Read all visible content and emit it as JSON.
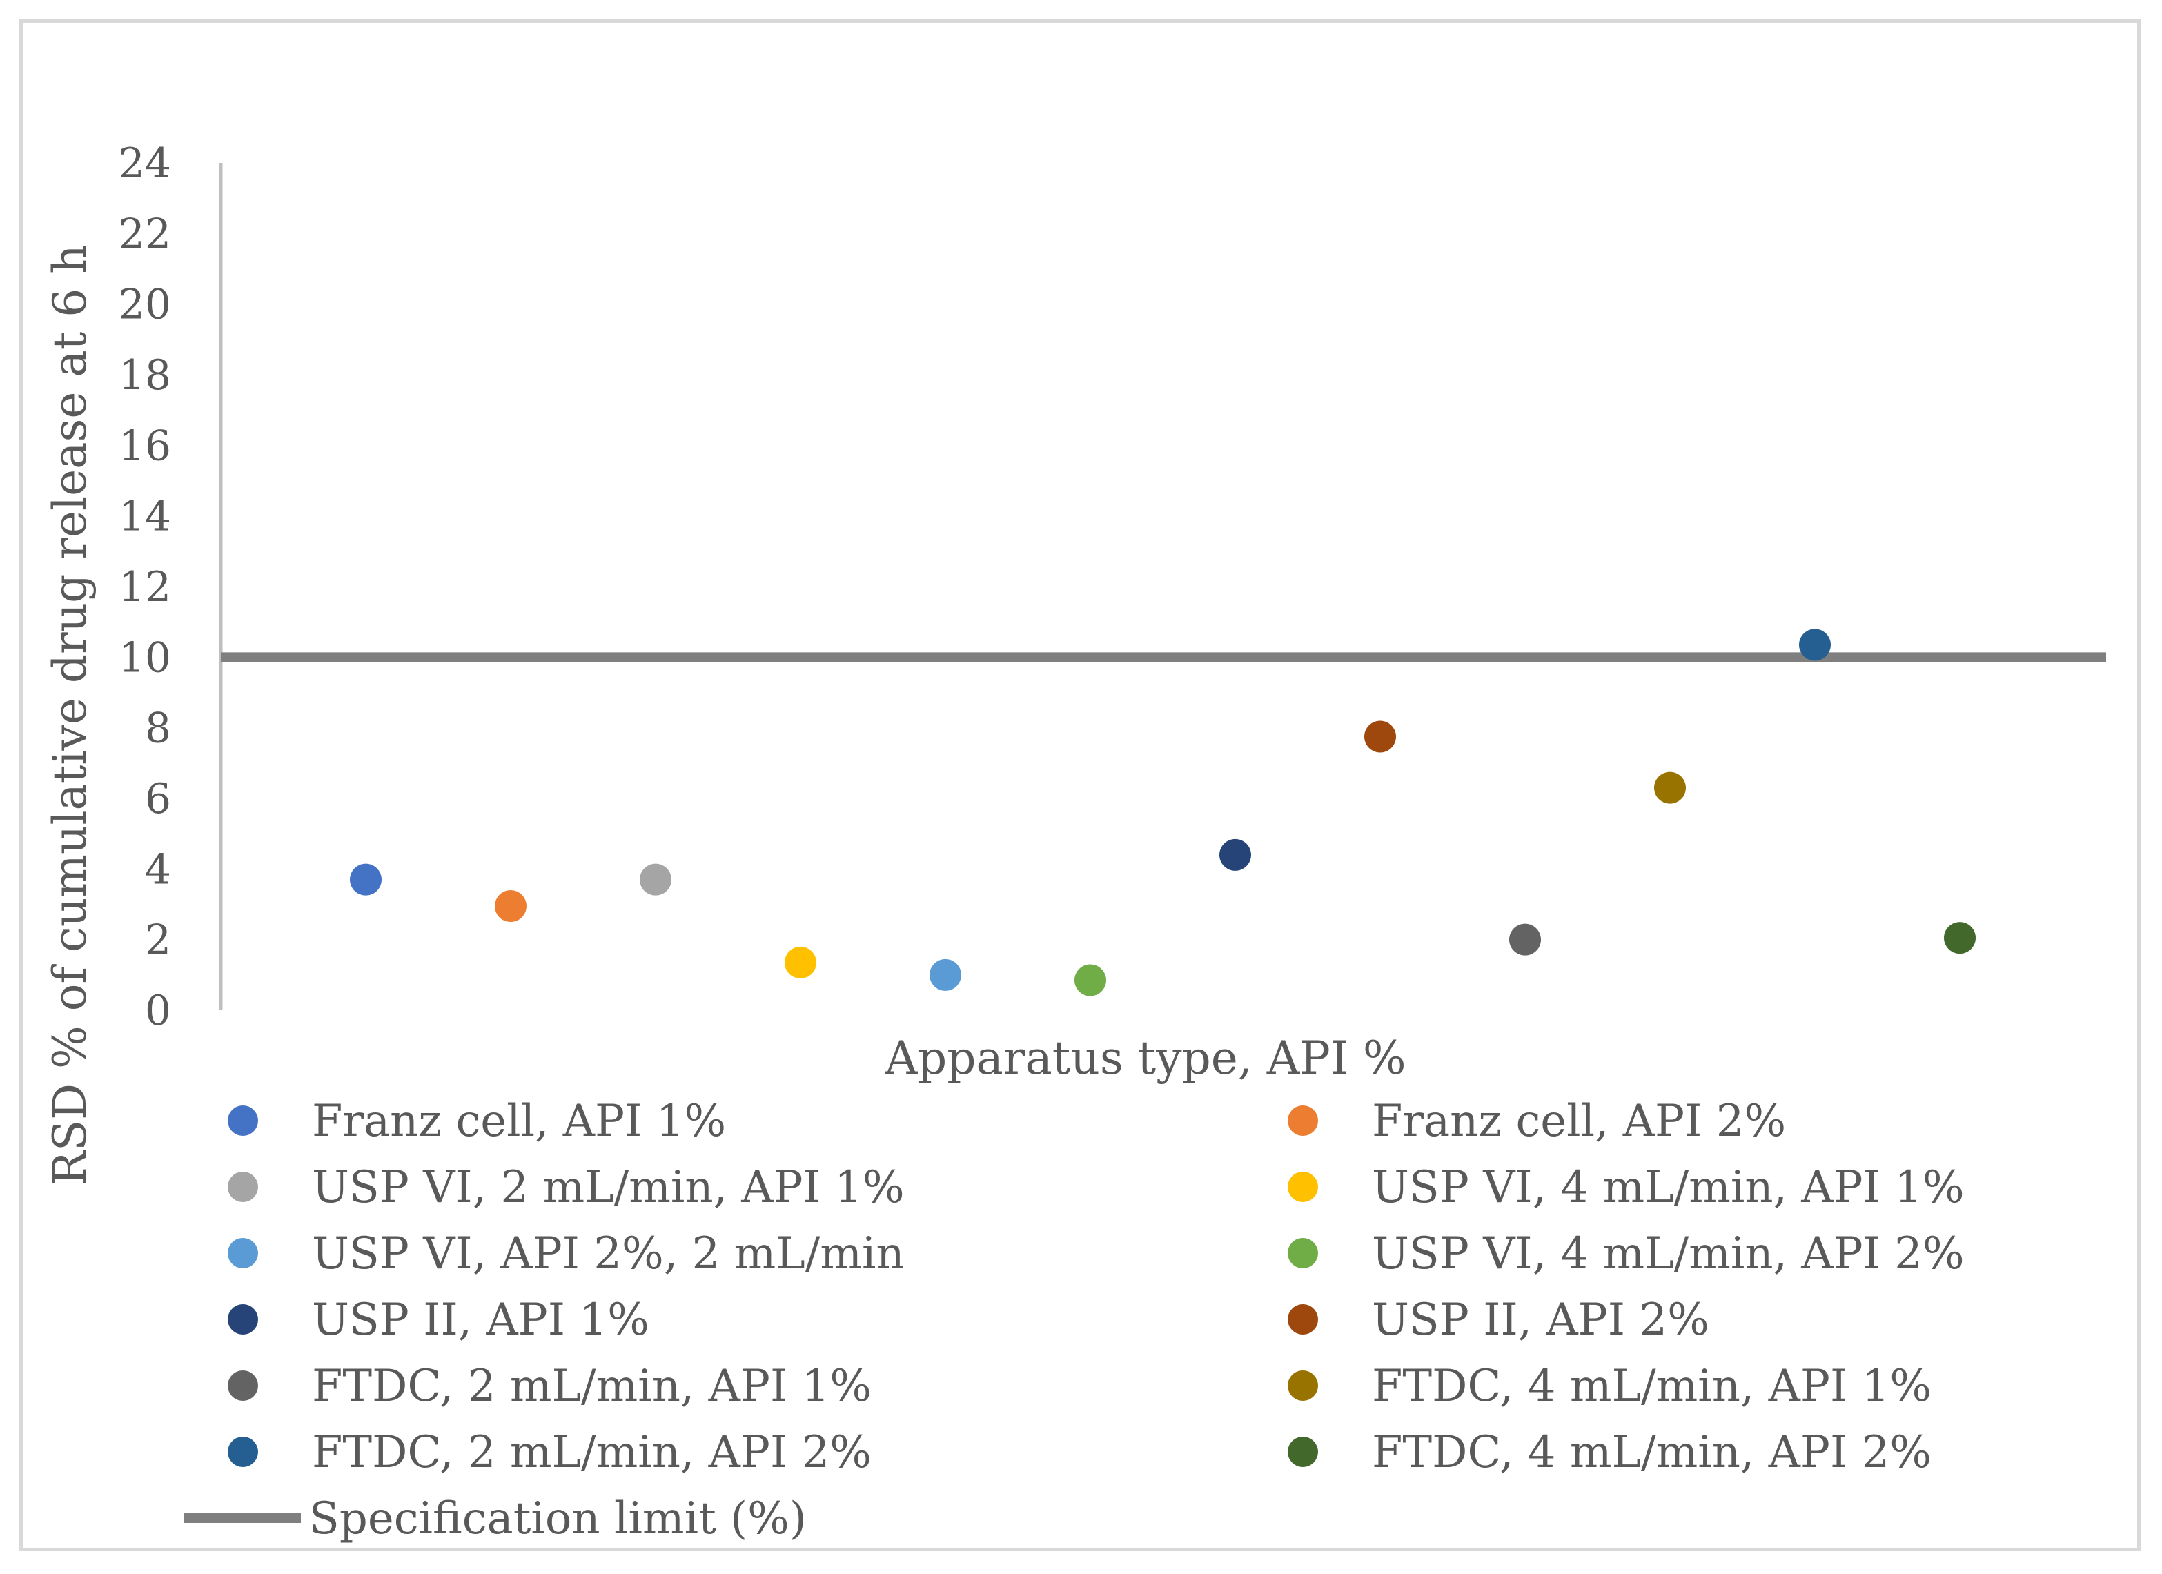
{
  "chart_data": {
    "type": "scatter",
    "title": "",
    "xlabel": "Apparatus type, API %",
    "ylabel": "RSD % of cumulative drug release  at 6 h",
    "ylim": [
      0,
      24
    ],
    "yticks": [
      0,
      2,
      4,
      6,
      8,
      10,
      12,
      14,
      16,
      18,
      20,
      22,
      24
    ],
    "grid": false,
    "legend_position": "bottom",
    "series": [
      {
        "name": "Franz cell, API 1%",
        "x": 1,
        "y": 3.7,
        "color": "#4472C4"
      },
      {
        "name": "Franz cell, API 2%",
        "x": 2,
        "y": 2.95,
        "color": "#ED7D31"
      },
      {
        "name": "USP VI, 2 mL/min, API 1%",
        "x": 3,
        "y": 3.7,
        "color": "#A5A5A5"
      },
      {
        "name": "USP VI,  4 mL/min, API 1%",
        "x": 4,
        "y": 1.35,
        "color": "#FFC000"
      },
      {
        "name": "USP VI, API 2%, 2 mL/min",
        "x": 5,
        "y": 1.0,
        "color": "#5B9BD5"
      },
      {
        "name": "USP VI, 4 mL/min, API 2%",
        "x": 6,
        "y": 0.85,
        "color": "#70AD47"
      },
      {
        "name": "USP II, API 1%",
        "x": 7,
        "y": 4.4,
        "color": "#264478"
      },
      {
        "name": "USP II, API 2%",
        "x": 8,
        "y": 7.75,
        "color": "#9E480E"
      },
      {
        "name": "FTDC, 2 mL/min, API 1%",
        "x": 9,
        "y": 2.0,
        "color": "#636363"
      },
      {
        "name": "FTDC, 4 mL/min,  API 1%",
        "x": 10,
        "y": 6.3,
        "color": "#997300"
      },
      {
        "name": "FTDC, 2 mL/min,  API 2%",
        "x": 11,
        "y": 10.35,
        "color": "#255E91"
      },
      {
        "name": "FTDC, 4 mL/min,  API 2%",
        "x": 12,
        "y": 2.05,
        "color": "#43682B"
      }
    ],
    "reference_line": {
      "name": "Specification limit (%)",
      "y": 10,
      "color": "#7F7F7F"
    }
  }
}
